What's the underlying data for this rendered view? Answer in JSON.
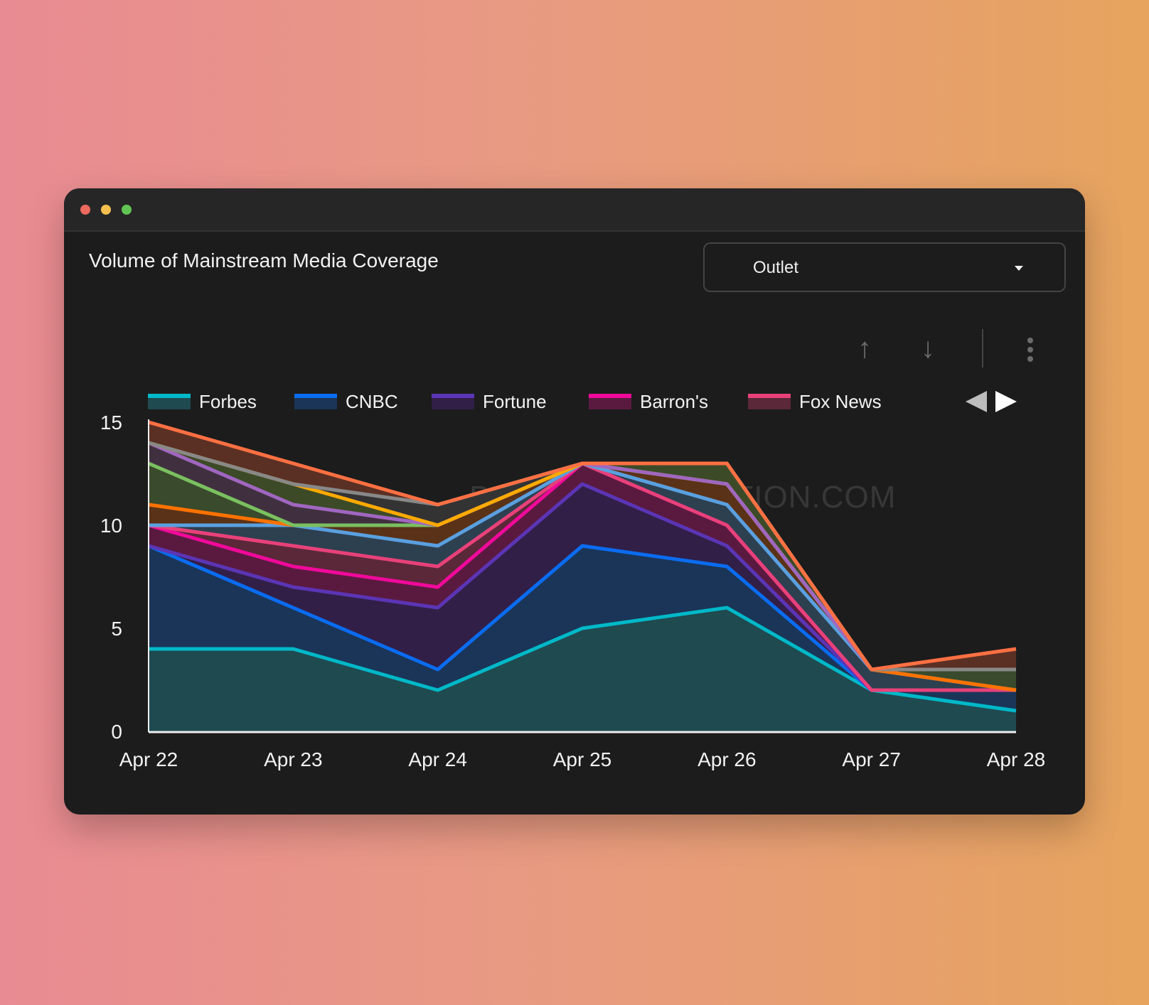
{
  "window": {
    "title": "Volume of Mainstream Media Coverage",
    "dots": [
      "#ed6a5e",
      "#f4bf4f",
      "#61c554"
    ]
  },
  "dropdown": {
    "label": "Outlet"
  },
  "toolbar": {
    "icons": [
      "arrow-up-icon",
      "arrow-down-icon",
      "more-vert-icon"
    ]
  },
  "watermark": "BITCOINPERCEPTION.COM",
  "chart_data": {
    "type": "area",
    "stacked": true,
    "title": "Volume of Mainstream Media Coverage",
    "xlabel": "",
    "ylabel": "",
    "categories": [
      "Apr 22",
      "Apr 23",
      "Apr 24",
      "Apr 25",
      "Apr 26",
      "Apr 27",
      "Apr 28"
    ],
    "yticks": [
      "0",
      "5",
      "10",
      "15"
    ],
    "ylim": [
      0,
      15
    ],
    "legend_position": "top",
    "series": [
      {
        "name": "Forbes",
        "color": "#00b8c8",
        "fill": "#1f4a50",
        "values": [
          4,
          4,
          2,
          5,
          6,
          2,
          1
        ]
      },
      {
        "name": "CNBC",
        "color": "#0a6cf0",
        "fill": "#1a3558",
        "values": [
          5,
          2,
          1,
          4,
          2,
          0,
          1
        ]
      },
      {
        "name": "Fortune",
        "color": "#5b35b5",
        "fill": "#311f48",
        "values": [
          0,
          1,
          3,
          3,
          1,
          0,
          0
        ]
      },
      {
        "name": "Barron's",
        "color": "#f0099a",
        "fill": "#5a1a40",
        "values": [
          1,
          1,
          1,
          1,
          1,
          0,
          0
        ]
      },
      {
        "name": "Fox News",
        "color": "#e8417a",
        "fill": "#5a2838",
        "values": [
          0,
          1,
          1,
          0,
          0,
          0,
          0
        ]
      },
      {
        "name": null,
        "color": "#5aa0e0",
        "fill": "#2d4050",
        "values": [
          0,
          1,
          1,
          0,
          1,
          1,
          0
        ]
      },
      {
        "name": null,
        "color": "#ff7200",
        "fill": "#5a3218",
        "values": [
          1,
          0,
          1,
          0,
          1,
          0,
          0
        ]
      },
      {
        "name": null,
        "color": "#7ac060",
        "fill": "#3a4a2c",
        "values": [
          2,
          0,
          0,
          0,
          0,
          0,
          1
        ]
      },
      {
        "name": null,
        "color": "#a066c0",
        "fill": "#40303f",
        "values": [
          1,
          1,
          0,
          0,
          0,
          0,
          0
        ]
      },
      {
        "name": null,
        "color": "#ffaa00",
        "fill": "#3c4a28",
        "values": [
          0,
          1,
          0,
          0,
          1,
          0,
          0
        ]
      },
      {
        "name": null,
        "color": "#888888",
        "fill": "#333333",
        "values": [
          0,
          0,
          1,
          0,
          0,
          0,
          0
        ]
      },
      {
        "name": null,
        "color": "#ff7043",
        "fill": "#5a3024",
        "values": [
          1,
          1,
          0,
          0,
          0,
          0,
          1
        ]
      }
    ]
  }
}
